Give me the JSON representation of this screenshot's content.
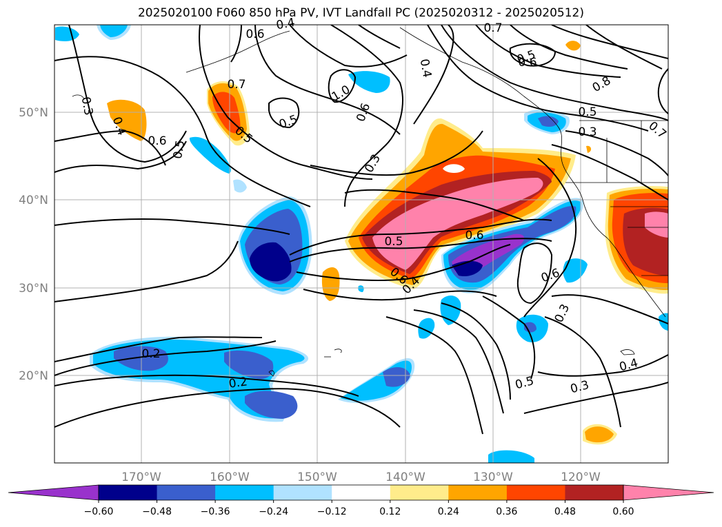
{
  "title": "2025020100 F060 850 hPa PV, IVT Landfall PC (2025020312 - 2025020512)",
  "map": {
    "lon_labels": [
      "170°W",
      "160°W",
      "150°W",
      "140°W",
      "130°W",
      "120°W"
    ],
    "lat_labels": [
      "50°N",
      "40°N",
      "30°N",
      "20°N"
    ],
    "contour_labels": [
      "0.2",
      "0.2",
      "0.3",
      "0.3",
      "0.3",
      "0.3",
      "0.3",
      "0.4",
      "0.4",
      "0.4",
      "0.4",
      "0.4",
      "0.5",
      "0.5",
      "0.5",
      "0.5",
      "0.5",
      "0.5",
      "0.5",
      "0.6",
      "0.6",
      "0.6",
      "0.6",
      "0.6",
      "0.6",
      "0.6",
      "0.7",
      "0.7",
      "0.7",
      "0.8",
      "1.0"
    ]
  },
  "colorbar": {
    "ticks": [
      "−0.60",
      "−0.48",
      "−0.36",
      "−0.24",
      "−0.12",
      "0.12",
      "0.24",
      "0.36",
      "0.48",
      "0.60"
    ],
    "colors": [
      "#9932CC",
      "#00008B",
      "#3A5FCD",
      "#00BFFF",
      "#B0E2FF",
      "#FFFFFF",
      "#FFEC8B",
      "#FFA500",
      "#FF4500",
      "#B22222",
      "#FF82AB"
    ]
  }
}
